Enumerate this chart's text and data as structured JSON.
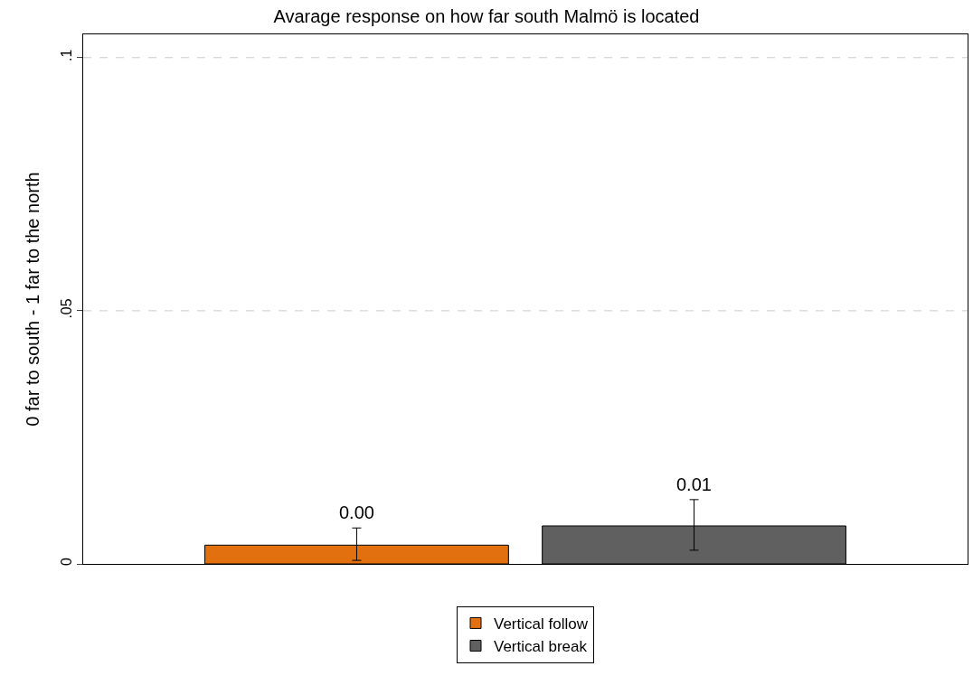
{
  "chart_data": {
    "type": "bar",
    "title": "Avarage response on how far south Malmö is located",
    "ylabel": "0 far to south - 1 far to the north",
    "categories": [
      null
    ],
    "series": [
      {
        "name": "Vertical follow",
        "color": "#e3700f",
        "values": [
          0.0037
        ],
        "errors": [
          [
            0.0007,
            0.0071
          ]
        ],
        "value_labels": [
          "0.00"
        ]
      },
      {
        "name": "Vertical break",
        "color": "#606060",
        "values": [
          0.0075
        ],
        "errors": [
          [
            0.0027,
            0.0127
          ]
        ],
        "value_labels": [
          "0.01"
        ]
      }
    ],
    "ylim": [
      0,
      0.1046
    ],
    "yticks": [
      {
        "value": 0,
        "label": "0"
      },
      {
        "value": 0.05,
        "label": ".05"
      },
      {
        "value": 0.1,
        "label": ".1"
      }
    ],
    "grid": "y",
    "legend": "bottom"
  }
}
